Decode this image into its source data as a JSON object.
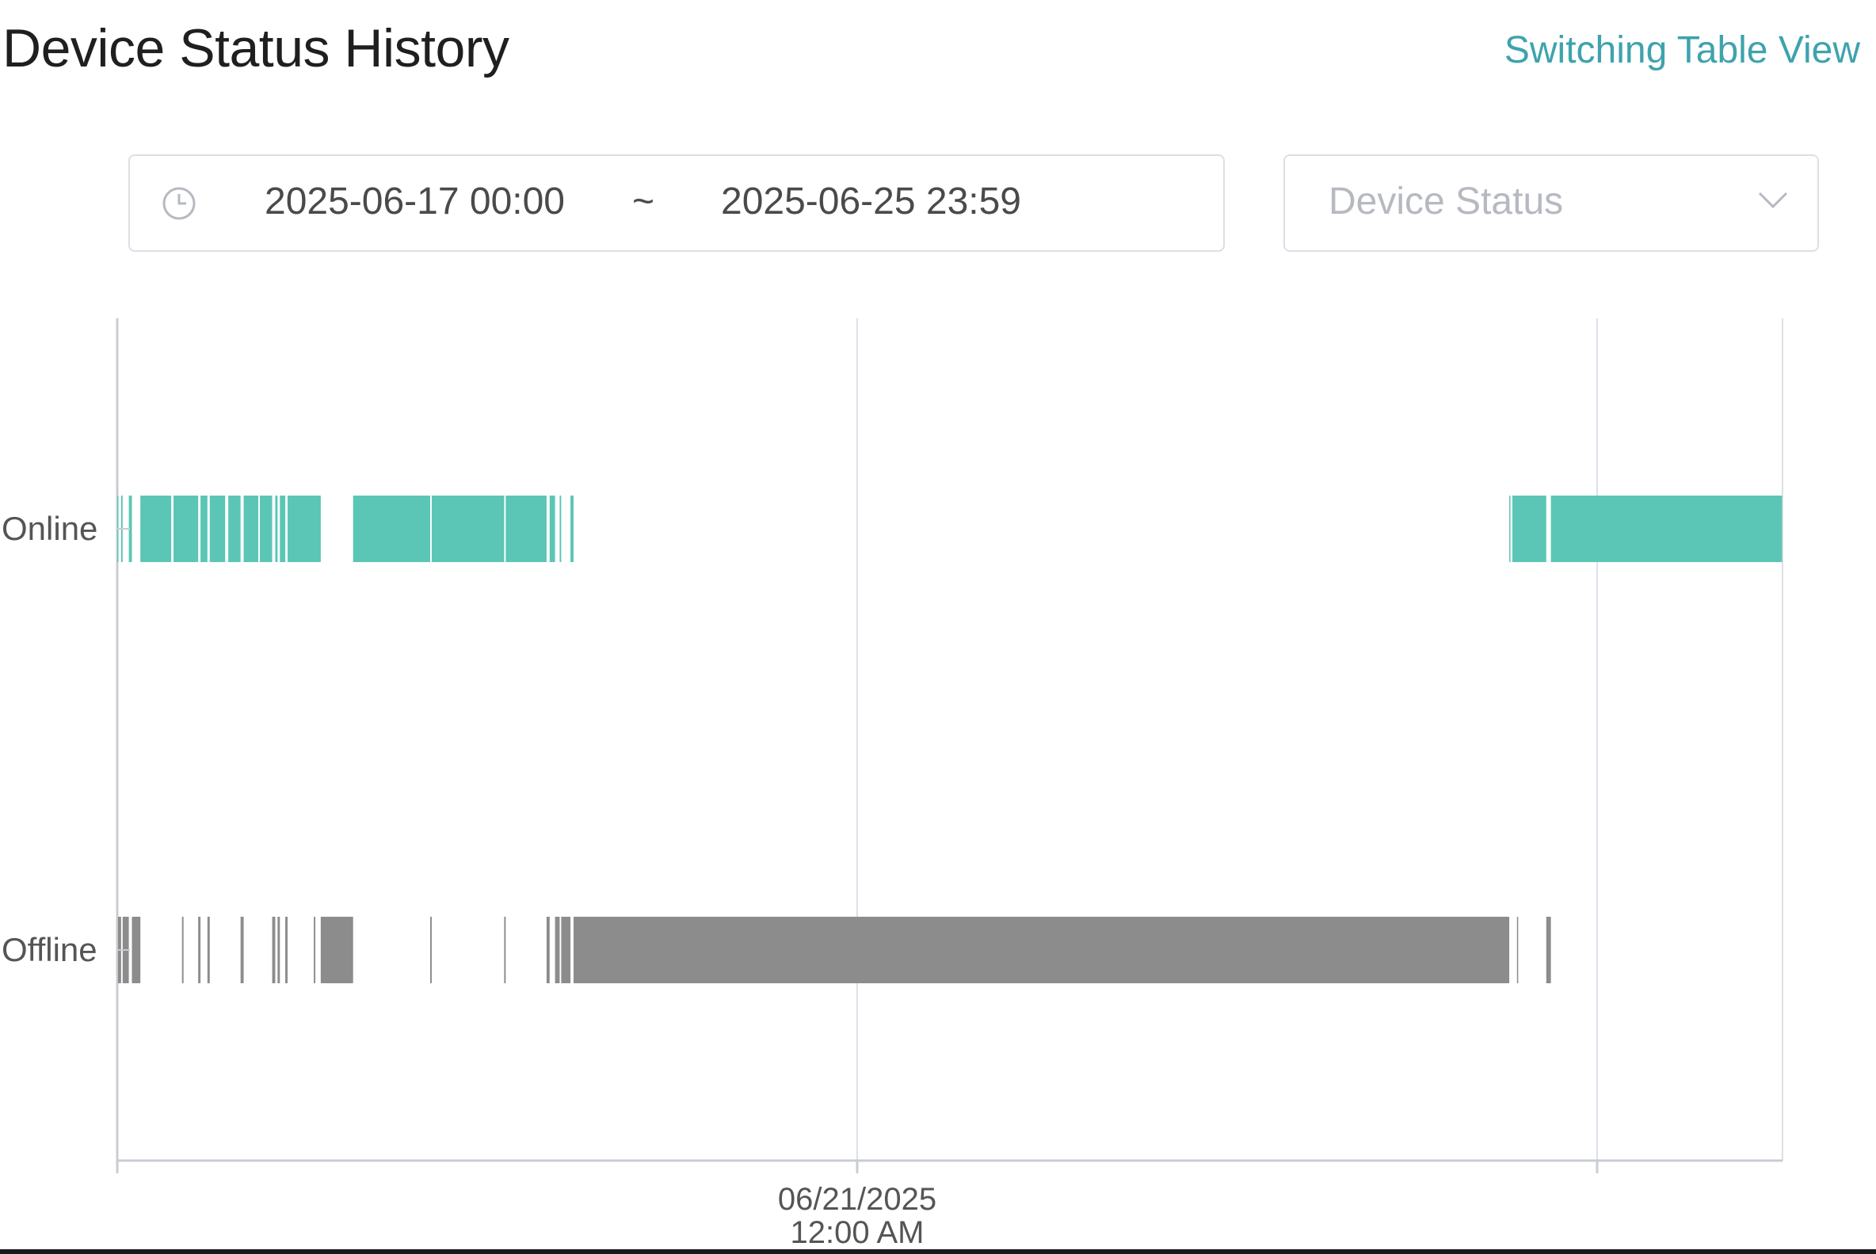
{
  "header": {
    "title": "Device Status History",
    "switch_link": "Switching Table View"
  },
  "filters": {
    "range_start": "2025-06-17 00:00",
    "range_separator": "~",
    "range_end": "2025-06-25 23:59",
    "status_placeholder": "Device Status"
  },
  "icons": {
    "range_picker": "clock-icon",
    "status_select": "chevron-down-icon"
  },
  "colors": {
    "online": "#5bc6b5",
    "offline": "#8c8c8c",
    "accent_link": "#3ea3ad"
  },
  "chart_data": {
    "type": "timeline",
    "x_range": [
      "2025-06-17 00:00",
      "2025-06-25 23:59"
    ],
    "x_ticks": [
      {
        "date": "2025-06-17",
        "hours_from_start": 0,
        "label": ""
      },
      {
        "date": "2025-06-21",
        "hours_from_start": 96,
        "label": [
          "06/21/2025",
          "12:00 AM"
        ]
      },
      {
        "date": "2025-06-25",
        "hours_from_start": 192,
        "label": ""
      }
    ],
    "categories": [
      "Online",
      "Offline"
    ],
    "grid": true,
    "series": [
      {
        "name": "Online",
        "segments": [
          [
            0.0,
            0.1
          ],
          [
            0.5,
            0.7
          ],
          [
            1.5,
            1.9
          ],
          [
            3.0,
            7.0
          ],
          [
            7.3,
            10.5
          ],
          [
            10.8,
            11.7
          ],
          [
            12.0,
            14.0
          ],
          [
            14.4,
            16.0
          ],
          [
            16.4,
            18.3
          ],
          [
            18.5,
            20.1
          ],
          [
            20.5,
            20.8
          ],
          [
            21.1,
            21.8
          ],
          [
            22.1,
            26.4
          ],
          [
            30.6,
            40.6
          ],
          [
            40.8,
            50.2
          ],
          [
            50.4,
            55.7
          ],
          [
            56.1,
            56.8
          ],
          [
            57.4,
            57.6
          ],
          [
            58.8,
            59.2
          ],
          [
            180.6,
            180.7
          ],
          [
            181.0,
            185.4
          ],
          [
            186.0,
            216.0
          ]
        ]
      },
      {
        "name": "Offline",
        "segments": [
          [
            0.1,
            0.5
          ],
          [
            0.7,
            1.5
          ],
          [
            1.9,
            3.0
          ],
          [
            8.4,
            8.6
          ],
          [
            10.5,
            10.8
          ],
          [
            11.7,
            12.0
          ],
          [
            16.0,
            16.4
          ],
          [
            20.1,
            20.5
          ],
          [
            20.8,
            21.1
          ],
          [
            21.8,
            22.1
          ],
          [
            25.5,
            25.7
          ],
          [
            26.4,
            30.6
          ],
          [
            40.6,
            40.8
          ],
          [
            50.2,
            50.4
          ],
          [
            55.7,
            56.1
          ],
          [
            56.8,
            57.4
          ],
          [
            57.6,
            58.8
          ],
          [
            59.2,
            180.6
          ],
          [
            181.6,
            181.7
          ],
          [
            185.4,
            186.0
          ]
        ]
      }
    ]
  }
}
